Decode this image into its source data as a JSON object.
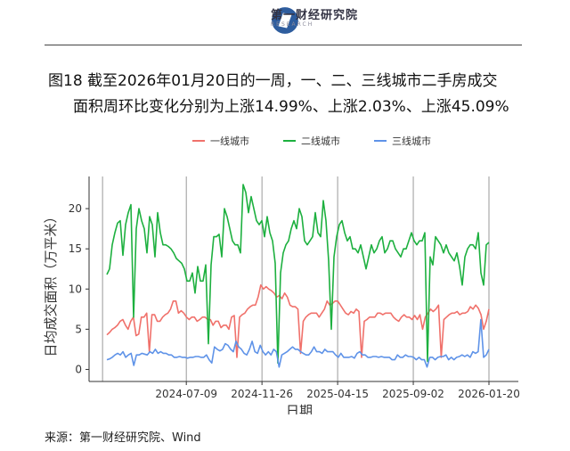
{
  "header": {
    "logo_text": "第一财经研究院",
    "logo_sub": "RESEARCH"
  },
  "title_line1": "图18  截至2026年01月20日的一周，一、二、三线城市二手房成交",
  "title_line2": "面积周环比变化分别为上涨14.99%、上涨2.03%、上涨45.09%",
  "source": "来源：第一财经研究院、Wind",
  "chart_data": {
    "type": "line",
    "xlabel": "日期",
    "ylabel": "日均成交面积（万平米）",
    "ylim": [
      -1.5,
      24
    ],
    "yticks": [
      0,
      5,
      10,
      15,
      20
    ],
    "x_start": "2024-02-13",
    "x_end": "2026-01-20",
    "xticks": [
      "2024-07-09",
      "2024-11-26",
      "2025-04-15",
      "2025-09-02",
      "2026-01-20"
    ],
    "vlines": [
      "2024-02-05",
      "2024-07-09",
      "2024-11-26",
      "2025-04-15",
      "2025-09-02",
      "2026-01-20"
    ],
    "legend_position": "top",
    "series": [
      {
        "name": "一线城市",
        "color": "#F0716B",
        "values": [
          4.3,
          4.6,
          5,
          5.2,
          5.5,
          6,
          6.2,
          5.5,
          5,
          6,
          6.5,
          4.2,
          4.4,
          6.5,
          6.5,
          7,
          2.2,
          6.8,
          6.8,
          6,
          6,
          6.5,
          6.8,
          7,
          7.5,
          8.5,
          8.5,
          7,
          7.3,
          7,
          6.5,
          6.2,
          6.5,
          6.5,
          6,
          6.2,
          6.5,
          6.5,
          6.2,
          6.2,
          5.5,
          6,
          6,
          5.2,
          5.5,
          5.5,
          5,
          6.5,
          6.7,
          1.5,
          6.5,
          6.8,
          7,
          7.5,
          7.8,
          8,
          8,
          9,
          10.5,
          10,
          10.3,
          10,
          9.8,
          9.5,
          9,
          9.2,
          8.8,
          9.5,
          9,
          8,
          7.8,
          7.8,
          7.5,
          2,
          6,
          6.5,
          6.8,
          7,
          7,
          7,
          6.5,
          7,
          7.5,
          8.5,
          8,
          8.2,
          8.5,
          8.5,
          8,
          7.5,
          7,
          6.8,
          7.2,
          7,
          7.5,
          7.2,
          1.5,
          6,
          6.2,
          6.5,
          6.5,
          6.5,
          7,
          7,
          6.8,
          7,
          7,
          7,
          6.5,
          6.2,
          6,
          6.5,
          6.8,
          6.5,
          6.5,
          6.2,
          6.7,
          6.2,
          6.8,
          5,
          6.5,
          7,
          7.5,
          7.2,
          7.5,
          8,
          1.5,
          6.2,
          6.5,
          6.8,
          7,
          7,
          7.2,
          6.8,
          7,
          7,
          7.2,
          7.8,
          7.5,
          8,
          7.6,
          6.8,
          5,
          6,
          7.5
        ]
      },
      {
        "name": "二线城市",
        "color": "#1DB03F",
        "values": [
          11.8,
          12.5,
          15.5,
          17,
          18.2,
          18.5,
          14.2,
          18,
          19.5,
          20.5,
          6.5,
          17.5,
          20,
          18.5,
          17.5,
          14.5,
          19,
          18,
          14,
          19.5,
          17,
          15.5,
          15.5,
          15.3,
          15,
          14.5,
          13.8,
          13.5,
          13.2,
          12.5,
          11,
          11,
          12,
          9.5,
          12.8,
          11,
          11,
          13,
          3.2,
          13,
          16.5,
          16.5,
          16.8,
          14,
          20,
          19,
          17.5,
          16,
          15.5,
          15.5,
          14.5,
          23,
          22,
          19.5,
          21.5,
          20,
          18.5,
          18,
          18.5,
          16.5,
          19,
          17,
          16,
          13.2,
          0.8,
          12,
          14.5,
          15.5,
          16,
          17.5,
          18.5,
          17.5,
          20,
          19,
          16,
          15.5,
          16,
          16.5,
          19.5,
          17,
          16.5,
          21,
          18.5,
          13.5,
          5,
          14,
          16.5,
          18,
          18.5,
          17,
          16,
          16.5,
          15,
          15,
          14.5,
          15.5,
          14,
          12.5,
          14,
          15.5,
          14.5,
          15,
          16,
          16.5,
          14.5,
          15,
          16,
          16,
          15,
          14.5,
          14,
          15,
          15,
          16,
          17,
          16,
          15.5,
          16,
          16,
          17,
          1,
          14,
          13,
          16.5,
          16,
          15.5,
          14.5,
          15.5,
          14.5,
          14,
          13.5,
          14.5,
          12.8,
          10.5,
          14,
          15,
          15.5,
          15.5,
          15,
          17,
          12,
          10.5,
          15.5,
          15.8
        ]
      },
      {
        "name": "三线城市",
        "color": "#5F93E8",
        "values": [
          1.2,
          1.3,
          1.5,
          1.8,
          2,
          1.8,
          2.2,
          1.5,
          1.8,
          2,
          0.5,
          1.8,
          1.8,
          2,
          1.9,
          1.8,
          2.2,
          2,
          2.5,
          2,
          2.2,
          2,
          2,
          1.8,
          1.8,
          1.5,
          1.5,
          1.6,
          1.5,
          1.5,
          1.4,
          1.5,
          1.5,
          1.6,
          1.6,
          1.5,
          1.5,
          1.8,
          1.2,
          0.8,
          2.8,
          2.5,
          2.3,
          2.5,
          3.2,
          3,
          2.5,
          2.2,
          3.5,
          2.8,
          2.5,
          2,
          1.8,
          2.5,
          3.5,
          2.2,
          2,
          3,
          2.2,
          1.8,
          2.2,
          1.8,
          2.5,
          2.2,
          0.3,
          1.8,
          2,
          2.2,
          2.5,
          2.8,
          2.5,
          2.5,
          2.2,
          2,
          1.8,
          1.8,
          2.2,
          2.8,
          2.2,
          2.2,
          2,
          2.5,
          2.2,
          2.2,
          2.2,
          1.8,
          1.5,
          2,
          1.5,
          1.5,
          1.5,
          1.6,
          1.4,
          2,
          2.2,
          1.8,
          1.8,
          1.5,
          1.5,
          1.6,
          1.6,
          1.5,
          1.6,
          1.5,
          1.5,
          1.5,
          1.2,
          1.2,
          1.8,
          1.5,
          1.5,
          1.8,
          1.6,
          1.6,
          1.5,
          1.2,
          1.5,
          1.2,
          1.2,
          0.3,
          1.5,
          1.5,
          1.2,
          1.5,
          1.6,
          1.6,
          1.8,
          1.2,
          1.5,
          1.2,
          1.5,
          1.6,
          1.8,
          1.6,
          1.8,
          1.5,
          2.2,
          2,
          2.2,
          6.2,
          1.5,
          1.8,
          2.5
        ]
      }
    ]
  }
}
